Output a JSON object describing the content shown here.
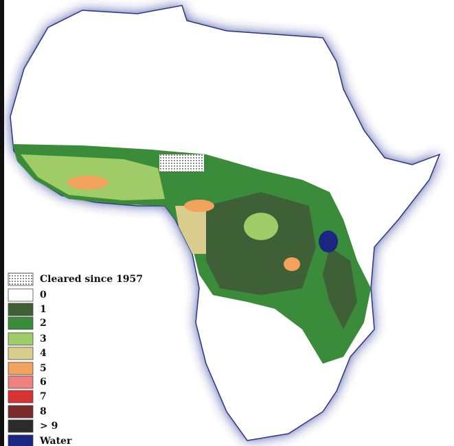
{
  "legend": {
    "items": [
      {
        "label": "Cleared since 1957",
        "color": "dotted"
      },
      {
        "label": "0",
        "color": "#ffffff"
      },
      {
        "label": "1",
        "color": "#3f5f36"
      },
      {
        "label": "2",
        "color": "#3a8c3a"
      },
      {
        "label": "3",
        "color": "#9fcc66"
      },
      {
        "label": "4",
        "color": "#d9cd8e"
      },
      {
        "label": "5",
        "color": "#f3a25e"
      },
      {
        "label": "6",
        "color": "#ef8080"
      },
      {
        "label": "7",
        "color": "#d83232"
      },
      {
        "label": "8",
        "color": "#7b2b2b"
      },
      {
        "label": "> 9",
        "color": "#2b2b2b"
      },
      {
        "label": "Water",
        "color": "#1b2683"
      }
    ]
  }
}
